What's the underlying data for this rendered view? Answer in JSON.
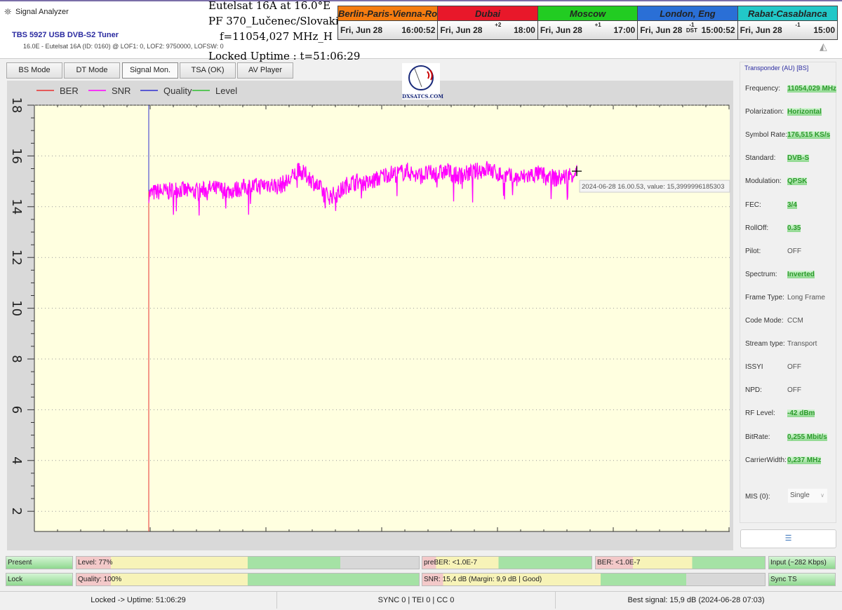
{
  "window": {
    "title": "Signal Analyzer"
  },
  "header": {
    "tuner": "TBS 5927 USB DVB-S2 Tuner",
    "sat_info": "16.0E - Eutelsat 16A (ID: 0160) @ LOF1: 0, LOF2: 9750000, LOFSW: 0"
  },
  "overlay": [
    "Eutelsat 16A at 16.0°E",
    "PF 370_Lučenec/Slovakia",
    "f=11054,027 MHz_H",
    "Locked Uptime : t=51:06:29"
  ],
  "clocks": [
    {
      "city": "Berlin-Paris-Vienna-Roma",
      "date": "Fri, Jun 28",
      "offset": "",
      "time": "16:00:52",
      "color": "#f57c10"
    },
    {
      "city": "Dubai",
      "date": "Fri, Jun 28",
      "offset": "+2",
      "time": "18:00",
      "color": "#e8182a"
    },
    {
      "city": "Moscow",
      "date": "Fri, Jun 28",
      "offset": "+1",
      "time": "17:00",
      "color": "#22cc22"
    },
    {
      "city": "London, Eng",
      "date": "Fri, Jun 28",
      "offset": "-1 DST",
      "time": "15:00:52",
      "color": "#2a6fd6"
    },
    {
      "city": "Rabat-Casablanca",
      "date": "Fri, Jun 28",
      "offset": "-1",
      "time": "15:00",
      "color": "#22c8c8"
    }
  ],
  "tabs": [
    "BS Mode",
    "DT Mode",
    "Signal Mon.",
    "TSA (OK)",
    "AV Player"
  ],
  "active_tab": "Signal Mon.",
  "logo": "DXSATCS.COM",
  "chart_data": {
    "type": "line",
    "legend": [
      {
        "name": "BER",
        "color": "#e83030"
      },
      {
        "name": "SNR",
        "color": "#ff00ff"
      },
      {
        "name": "Quality",
        "color": "#3030d0"
      },
      {
        "name": "Level",
        "color": "#30c030"
      }
    ],
    "legend_position": "top-left",
    "y_ticks": [
      18,
      16,
      14,
      12,
      10,
      8,
      6,
      4,
      2
    ],
    "ylim": [
      1.2,
      18
    ],
    "grid": true,
    "series": [
      {
        "name": "SNR",
        "values": [
          14.5,
          14.6,
          14.6,
          14.7,
          14.6,
          14.6,
          14.7,
          14.7,
          14.6,
          14.7,
          14.8,
          14.8,
          14.9,
          14.8,
          15.0,
          15.4,
          15.2,
          14.8,
          14.4,
          14.5,
          14.9,
          15.0,
          14.9,
          15.1,
          15.3,
          15.3,
          15.4,
          15.2,
          15.3,
          15.3,
          15.4,
          15.2,
          15.3,
          15.4,
          15.5,
          15.3,
          15.2,
          15.1,
          15.2,
          15.3,
          15.2,
          15.1,
          15.2,
          15.4
        ]
      }
    ],
    "tooltip": "2024-06-28 16.00.53, value: 15,3999996185303"
  },
  "transponder": {
    "title": "Transponder (AU) [BS]",
    "rows": [
      {
        "label": "Frequency:",
        "value": "11054,029 MHz",
        "green": true
      },
      {
        "label": "Polarization:",
        "value": "Horizontal",
        "green": true
      },
      {
        "label": "Symbol Rate:",
        "value": "176,515 KS/s",
        "green": true
      },
      {
        "label": "Standard:",
        "value": "DVB-S",
        "green": true
      },
      {
        "label": "Modulation:",
        "value": "QPSK",
        "green": true
      },
      {
        "label": "FEC:",
        "value": "3/4",
        "green": true
      },
      {
        "label": "RollOff:",
        "value": "0.35",
        "green": true
      },
      {
        "label": "Pilot:",
        "value": "OFF",
        "green": false
      },
      {
        "label": "Spectrum:",
        "value": "Inverted",
        "green": true
      },
      {
        "label": "Frame Type:",
        "value": "Long Frame",
        "green": false
      },
      {
        "label": "Code Mode:",
        "value": "CCM",
        "green": false
      },
      {
        "label": "Stream type:",
        "value": "Transport",
        "green": false
      },
      {
        "label": "ISSYI",
        "value": "OFF",
        "green": false
      },
      {
        "label": "NPD:",
        "value": "OFF",
        "green": false
      },
      {
        "label": "RF Level:",
        "value": "-42 dBm",
        "green": true
      },
      {
        "label": "BitRate:",
        "value": "0,255 Mbit/s",
        "green": true
      },
      {
        "label": "CarrierWidth:",
        "value": "0,237 MHz",
        "green": true
      }
    ],
    "mis_label": "MIS (0):",
    "mis_value": "Single"
  },
  "bars": {
    "present": "Present",
    "level": "Level: 77%",
    "level_pct": 77,
    "preber": "preBER: <1.0E-7",
    "ber": "BER: <1.0E-7",
    "input": "Input (~282 Kbps)",
    "lock": "Lock",
    "quality": "Quality: 100%",
    "quality_pct": 100,
    "snr": "SNR: 15,4 dB (Margin: 9,9 dB | Good)",
    "sync": "Sync TS"
  },
  "status": {
    "uptime": "Locked -> Uptime: 51:06:29",
    "sync": "SYNC 0 | TEI 0 | CC 0",
    "best": "Best signal: 15,9 dB (2024-06-28 07:03)"
  }
}
